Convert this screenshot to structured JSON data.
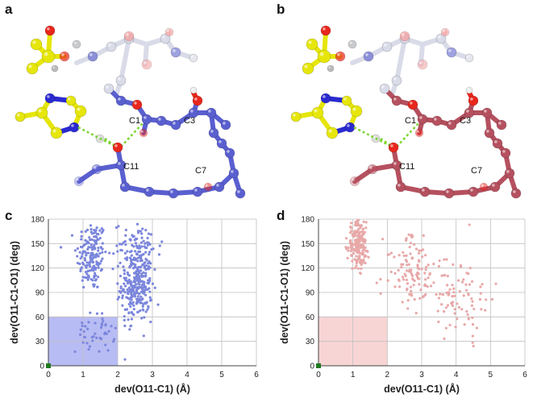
{
  "panels": {
    "a": "a",
    "b": "b",
    "c": "c",
    "d": "d"
  },
  "molecule_labels": {
    "a": [
      "C1",
      "C3",
      "C11",
      "C7"
    ],
    "b": [
      "C1",
      "C3",
      "C11",
      "C7"
    ]
  },
  "colors": {
    "blue_carbon": "#5a5fd0",
    "red_carbon": "#b5505f",
    "oxygen": "#e8261c",
    "nitrogen": "#2a2ad0",
    "sulfur": "#e6e60a",
    "hbond": "#7dd632",
    "scatter_c": "#7b86dc",
    "scatter_d": "#e8a8a8",
    "box_c": "#b8bcf4",
    "box_d": "#f8d5d5"
  },
  "chart_data": [
    {
      "panel": "c",
      "type": "scatter",
      "xlabel": "dev(O11-C1) (Å)",
      "ylabel": "dev(O11-C1-O1) (deg)",
      "xlim": [
        0,
        6
      ],
      "ylim": [
        0,
        180
      ],
      "xticks": [
        "0",
        "1",
        "2",
        "3",
        "4",
        "5",
        "6"
      ],
      "yticks": [
        "0",
        "30",
        "60",
        "90",
        "120",
        "150",
        "180"
      ],
      "grid": true,
      "highlight_region": {
        "x": [
          0,
          2
        ],
        "y": [
          0,
          60
        ]
      },
      "origin_marker": {
        "x": 0,
        "y": 0
      },
      "clusters": [
        {
          "cx": 1.25,
          "cy": 135,
          "sx": 0.22,
          "sy": 22,
          "n": 170
        },
        {
          "cx": 2.55,
          "cy": 100,
          "sx": 0.22,
          "sy": 22,
          "n": 310
        },
        {
          "cx": 2.6,
          "cy": 150,
          "sx": 0.35,
          "sy": 12,
          "n": 60
        },
        {
          "cx": 1.35,
          "cy": 40,
          "sx": 0.28,
          "sy": 12,
          "n": 45
        }
      ]
    },
    {
      "panel": "d",
      "type": "scatter",
      "xlabel": "dev(O11-C1) (Å)",
      "ylabel": "dev(O11-C1-O1) (deg)",
      "xlim": [
        0,
        6
      ],
      "ylim": [
        0,
        180
      ],
      "xticks": [
        "0",
        "1",
        "2",
        "3",
        "4",
        "5",
        "6"
      ],
      "yticks": [
        "0",
        "30",
        "60",
        "90",
        "120",
        "150",
        "180"
      ],
      "grid": true,
      "highlight_region": {
        "x": [
          0,
          2
        ],
        "y": [
          0,
          60
        ]
      },
      "origin_marker": {
        "x": 0,
        "y": 0
      },
      "clusters": [
        {
          "cx": 1.15,
          "cy": 150,
          "sx": 0.15,
          "sy": 15,
          "n": 210
        },
        {
          "cx": 2.6,
          "cy": 120,
          "sx": 0.35,
          "sy": 20,
          "n": 90
        },
        {
          "cx": 4.1,
          "cy": 85,
          "sx": 0.45,
          "sy": 25,
          "n": 80
        },
        {
          "cx": 3.3,
          "cy": 100,
          "sx": 0.4,
          "sy": 20,
          "n": 30
        }
      ]
    }
  ]
}
